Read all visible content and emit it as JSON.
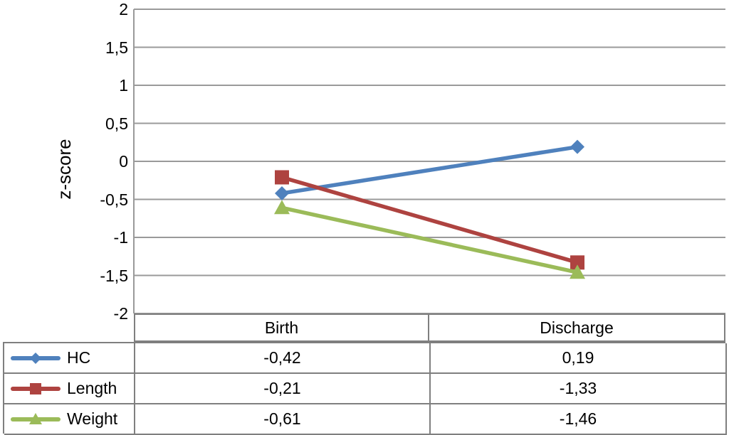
{
  "chart_data": {
    "type": "line",
    "title": "",
    "xlabel": "",
    "ylabel": "z-score",
    "ylim": [
      -2,
      2
    ],
    "y_tick_labels": [
      "2",
      "1,5",
      "1",
      "0,5",
      "0",
      "-0,5",
      "-1",
      "-1,5",
      "-2"
    ],
    "grid": true,
    "grid_color": "#9a9a9a",
    "axis_color": "#9a9a9a",
    "table_border_color": "#7f7f7f",
    "legend_position": "table-left",
    "categories": [
      "Birth",
      "Discharge"
    ],
    "series": [
      {
        "name": "HC",
        "marker": "diamond",
        "color": "#4F81BD",
        "values": [
          -0.42,
          0.19
        ],
        "display": [
          "-0,42",
          "0,19"
        ]
      },
      {
        "name": "Length",
        "marker": "square",
        "color": "#AE4340",
        "values": [
          -0.21,
          -1.33
        ],
        "display": [
          "-0,21",
          "-1,33"
        ]
      },
      {
        "name": "Weight",
        "marker": "triangle",
        "color": "#9BBB59",
        "values": [
          -0.61,
          -1.46
        ],
        "display": [
          "-0,61",
          "-1,46"
        ]
      }
    ]
  }
}
